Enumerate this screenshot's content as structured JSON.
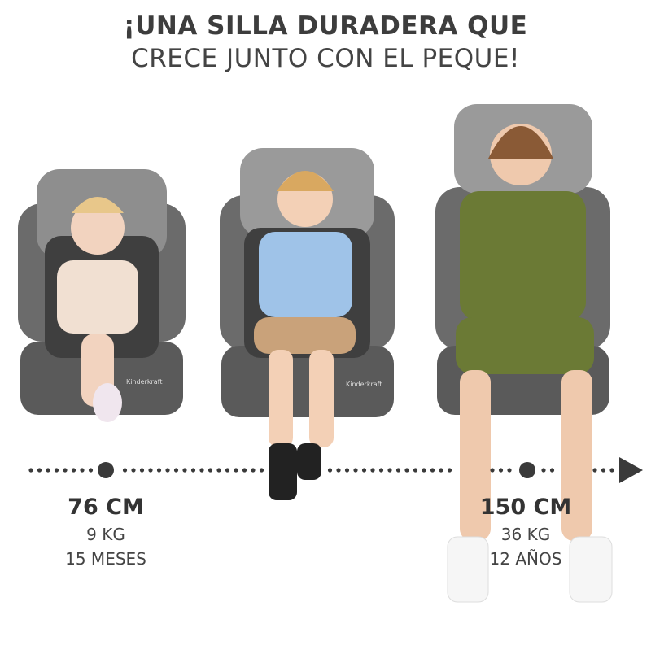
{
  "headline": {
    "line1": "¡UNA SILLA DURADERA QUE",
    "line2": "CRECE JUNTO CON EL PEQUE!"
  },
  "brand_logo": "Kinderkraft",
  "colors": {
    "text": "#3d3d3d",
    "timeline": "#3a3a3a",
    "seat": "#6b6b6b",
    "seat_light": "#9a9a9a"
  },
  "timeline": {
    "start": {
      "height": "76 CM",
      "weight": "9 KG",
      "age": "15 MESES"
    },
    "end": {
      "height": "150 CM",
      "weight": "36 KG",
      "age": "12 AÑOS"
    },
    "arrow_icon": "triangle-right-icon"
  }
}
